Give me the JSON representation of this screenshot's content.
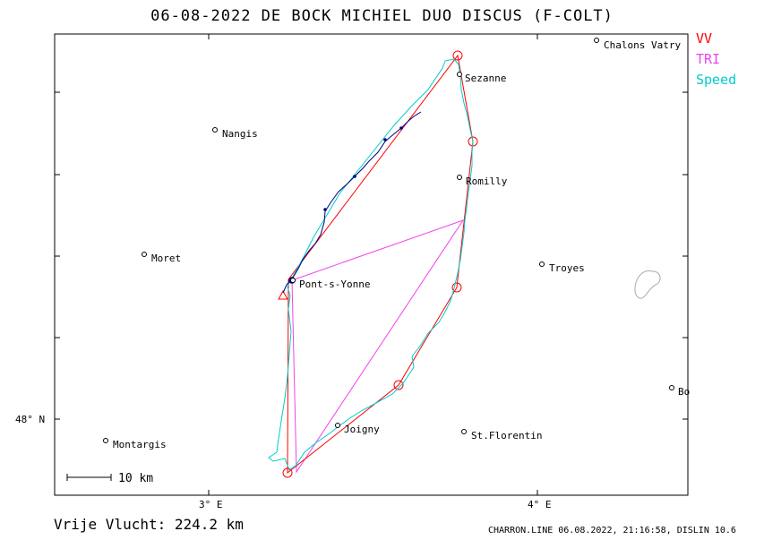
{
  "title": "06-08-2022   DE BOCK MICHIEL   DUO DISCUS (F-COLT)",
  "legend": [
    {
      "label": "VV",
      "color": "#ff0000"
    },
    {
      "label": "TRI",
      "color": "#ee44ee"
    },
    {
      "label": "Speed",
      "color": "#00dddd"
    }
  ],
  "axes": {
    "x_ticks": [
      "3° E",
      "4° E"
    ],
    "y_ticks": [
      "48° N"
    ]
  },
  "scale_bar": "10 km",
  "places": [
    {
      "name": "Chalons Vatry"
    },
    {
      "name": "Sezanne"
    },
    {
      "name": "Nangis"
    },
    {
      "name": "Romilly"
    },
    {
      "name": "Moret"
    },
    {
      "name": "Troyes"
    },
    {
      "name": "Pont-s-Yonne"
    },
    {
      "name": "Bo"
    },
    {
      "name": "Joigny"
    },
    {
      "name": "St.Florentin"
    },
    {
      "name": "Montargis"
    }
  ],
  "footer": {
    "distance": "Vrije Vlucht:  224.2 km",
    "meta": "CHARRON.LINE 06.08.2022, 21:16:58, DISLIN 10.6"
  },
  "colors": {
    "track_climb": "#000080",
    "track": "#00cccc",
    "task_vv": "#ff0000",
    "task_tri": "#ee44ee"
  }
}
